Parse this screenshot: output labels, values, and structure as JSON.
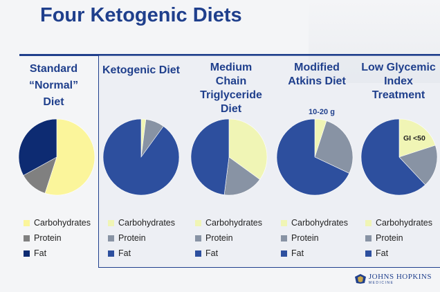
{
  "title": "Four Ketogenic Diets",
  "colors": {
    "carbohydrates": "#fbf59b",
    "protein": "#808080",
    "fat": "#0d2b72",
    "fat_keto": "#2d4f9e",
    "carb_keto": "#f0f5b5",
    "protein_keto": "#8893a4",
    "title": "#1f3f8c"
  },
  "legend_labels": [
    "Carbohydrates",
    "Protein",
    "Fat"
  ],
  "chart_data": [
    {
      "type": "pie",
      "title_lines": [
        "Standard",
        "“Normal”",
        "Diet"
      ],
      "categories": [
        "Carbohydrates",
        "Protein",
        "Fat"
      ],
      "values": [
        55,
        12,
        33
      ]
    },
    {
      "type": "pie",
      "title_lines": [
        "Ketogenic Diet"
      ],
      "categories": [
        "Carbohydrates",
        "Protein",
        "Fat"
      ],
      "values": [
        2,
        8,
        90
      ]
    },
    {
      "type": "pie",
      "title_lines": [
        "Medium",
        "Chain",
        "Triglyceride",
        "Diet"
      ],
      "categories": [
        "Carbohydrates",
        "Protein",
        "Fat"
      ],
      "values": [
        35,
        17,
        48
      ]
    },
    {
      "type": "pie",
      "title_lines": [
        "Modified",
        "Atkins Diet"
      ],
      "categories": [
        "Carbohydrates",
        "Protein",
        "Fat"
      ],
      "values": [
        5,
        27,
        68
      ],
      "annotation": "10-20 g"
    },
    {
      "type": "pie",
      "title_lines": [
        "Low Glycemic",
        "Index",
        "Treatment"
      ],
      "categories": [
        "Carbohydrates",
        "Protein",
        "Fat"
      ],
      "values": [
        20,
        18,
        62
      ],
      "annotation": "GI <50"
    }
  ],
  "logo": {
    "name": "JOHNS HOPKINS",
    "sub": "MEDICINE"
  }
}
